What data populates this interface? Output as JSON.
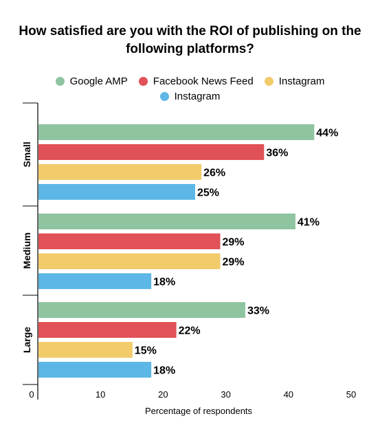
{
  "chart_data": {
    "type": "bar",
    "orientation": "horizontal",
    "title": "How satisfied are you with the ROI of publishing on the following platforms?",
    "xlabel": "Percentage of respondents",
    "ylabel": "",
    "xlim": [
      0,
      50
    ],
    "xticks": [
      "0",
      "10",
      "20",
      "30",
      "40",
      "50"
    ],
    "categories": [
      "Small",
      "Medium",
      "Large"
    ],
    "series": [
      {
        "name": "Google AMP",
        "color": "#8fc4a1",
        "values": [
          44,
          41,
          33
        ],
        "labels": [
          "44%",
          "41%",
          "33%"
        ]
      },
      {
        "name": "Facebook News Feed",
        "color": "#e05257",
        "values": [
          36,
          29,
          22
        ],
        "labels": [
          "36%",
          "29%",
          "22%"
        ]
      },
      {
        "name": "Instagram",
        "color": "#f2cc6b",
        "values": [
          26,
          29,
          15
        ],
        "labels": [
          "26%",
          "29%",
          "15%"
        ]
      },
      {
        "name": "Instagram",
        "color": "#5db7e6",
        "values": [
          25,
          18,
          18
        ],
        "labels": [
          "25%",
          "18%",
          "18%"
        ]
      }
    ],
    "legend_position": "top",
    "grid": false
  }
}
